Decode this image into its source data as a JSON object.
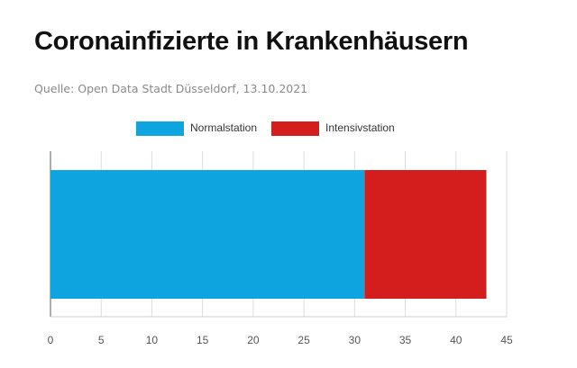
{
  "header": {
    "title": "Coronainfizierte in Krankenhäusern",
    "source": "Quelle: Open Data Stadt Düsseldorf, 13.10.2021"
  },
  "chart_data": {
    "type": "bar",
    "orientation": "horizontal",
    "stacked": true,
    "categories": [
      ""
    ],
    "series": [
      {
        "name": "Normalstation",
        "values": [
          31
        ],
        "color": "#0da4e0"
      },
      {
        "name": "Intensivstation",
        "values": [
          12
        ],
        "color": "#d41e1e"
      }
    ],
    "x_ticks": [
      "0",
      "5",
      "10",
      "15",
      "20",
      "25",
      "30",
      "35",
      "40",
      "45"
    ],
    "xlim": [
      0,
      45
    ],
    "grid": true,
    "legend_position": "top"
  }
}
